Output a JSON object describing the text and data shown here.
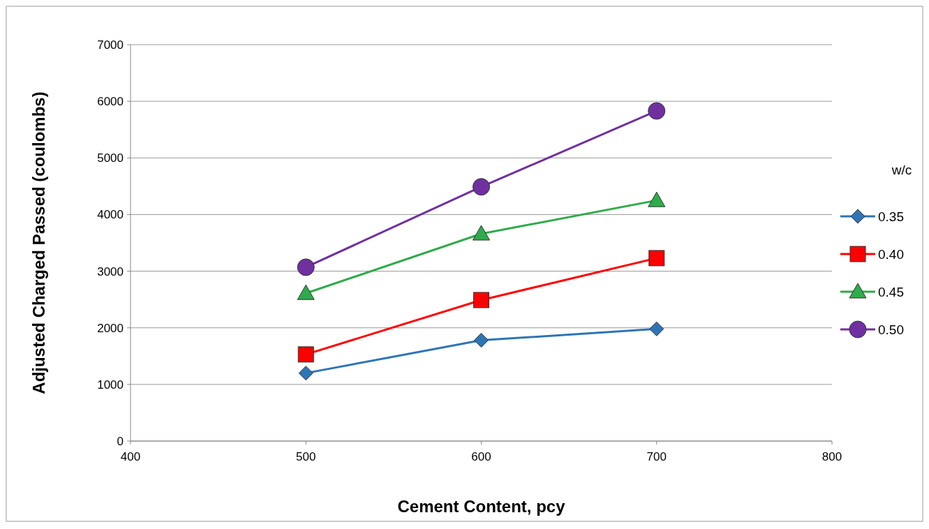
{
  "chart_data": {
    "type": "line",
    "xlabel": "Cement Content, pcy",
    "ylabel": "Adjusted Charged Passed (coulombs)",
    "legend_title": "w/c",
    "x": [
      500,
      600,
      700
    ],
    "xlim": [
      400,
      800
    ],
    "xticks": [
      400,
      500,
      600,
      700,
      800
    ],
    "ylim": [
      0,
      7000
    ],
    "yticks": [
      0,
      1000,
      2000,
      3000,
      4000,
      5000,
      6000,
      7000
    ],
    "grid": "y",
    "legend": "right",
    "series": [
      {
        "name": "0.35",
        "color": "#2e75b6",
        "marker": "diamond",
        "values": [
          1200,
          1780,
          1980
        ]
      },
      {
        "name": "0.40",
        "color": "#ff0000",
        "marker": "square",
        "values": [
          1530,
          2490,
          3230
        ]
      },
      {
        "name": "0.45",
        "color": "#2eab4a",
        "marker": "triangle",
        "values": [
          2610,
          3660,
          4250
        ]
      },
      {
        "name": "0.50",
        "color": "#7030a0",
        "marker": "circle",
        "values": [
          3070,
          4490,
          5830
        ]
      }
    ]
  }
}
